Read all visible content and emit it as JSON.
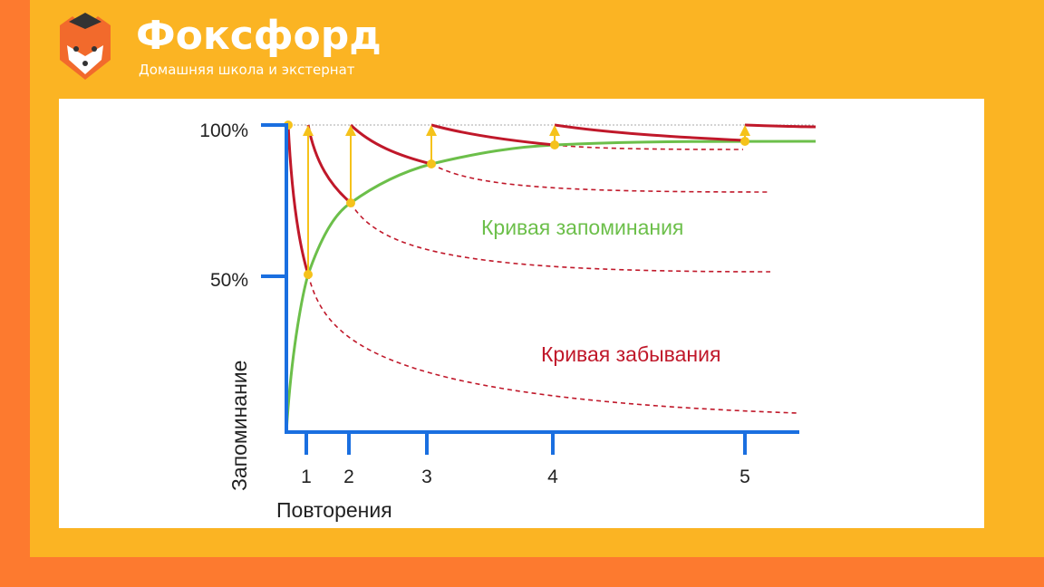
{
  "brand": {
    "name": "Фоксфорд",
    "tagline": "Домашняя школа и экстернат"
  },
  "diagram": {
    "y_ticks": [
      "100%",
      "50%"
    ],
    "x_ticks": [
      "1",
      "2",
      "3",
      "4",
      "5"
    ],
    "y_axis_label": "Запоминание",
    "x_axis_label": "Повторения",
    "memory_curve_label": "Кривая запоминания",
    "forgetting_curve_label": "Кривая забывания"
  }
}
